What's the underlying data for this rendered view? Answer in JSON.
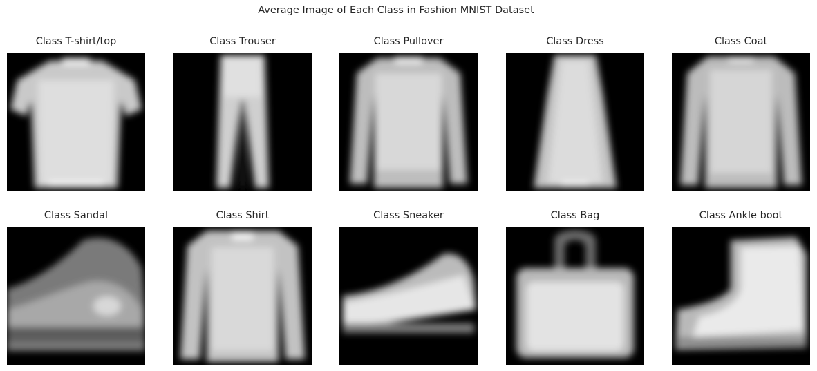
{
  "chart_data": {
    "type": "heatmap",
    "title": "Average Image of Each Class in Fashion MNIST Dataset",
    "layout": "2 rows x 5 columns",
    "colormap": "gray",
    "image_size": [
      28,
      28
    ],
    "axes": "off",
    "panels": [
      {
        "title": "Class T-shirt/top",
        "class": "T-shirt/top"
      },
      {
        "title": "Class Trouser",
        "class": "Trouser"
      },
      {
        "title": "Class Pullover",
        "class": "Pullover"
      },
      {
        "title": "Class Dress",
        "class": "Dress"
      },
      {
        "title": "Class Coat",
        "class": "Coat"
      },
      {
        "title": "Class Sandal",
        "class": "Sandal"
      },
      {
        "title": "Class Shirt",
        "class": "Shirt"
      },
      {
        "title": "Class Sneaker",
        "class": "Sneaker"
      },
      {
        "title": "Class Bag",
        "class": "Bag"
      },
      {
        "title": "Class Ankle boot",
        "class": "Ankle boot"
      }
    ]
  }
}
